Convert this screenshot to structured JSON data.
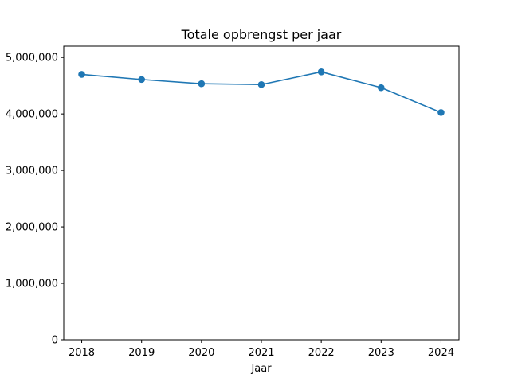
{
  "chart_data": {
    "type": "line",
    "title": "Totale opbrengst per jaar",
    "xlabel": "Jaar",
    "ylabel": "",
    "x": [
      2018,
      2019,
      2020,
      2021,
      2022,
      2023,
      2024
    ],
    "x_tick_labels": [
      "2018",
      "2019",
      "2020",
      "2021",
      "2022",
      "2023",
      "2024"
    ],
    "xlim": [
      2017.7,
      2024.3
    ],
    "ylim": [
      0,
      5200000
    ],
    "y_ticks": [
      0,
      1000000,
      2000000,
      3000000,
      4000000,
      5000000
    ],
    "y_tick_labels": [
      "0",
      "1,000,000",
      "2,000,000",
      "3,000,000",
      "4,000,000",
      "5,000,000"
    ],
    "series": [
      {
        "values": [
          4700000,
          4610000,
          4535000,
          4520000,
          4745000,
          4465000,
          4025000
        ],
        "color": "#1f77b4",
        "marker": "circle"
      }
    ],
    "grid": false,
    "legend": "none"
  }
}
